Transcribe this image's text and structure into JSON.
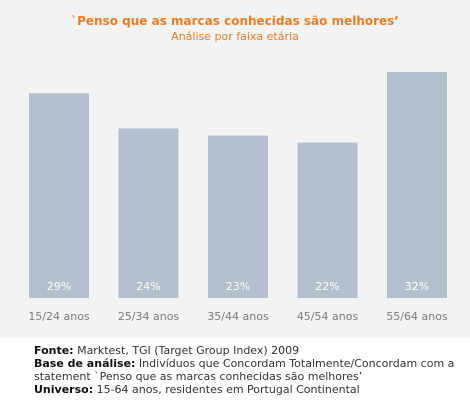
{
  "chart_data": {
    "type": "bar",
    "title": "`Penso que as marcas conhecidas são melhores’",
    "subtitle": "Análise por faixa etária",
    "categories": [
      "15/24 anos",
      "25/34 anos",
      "35/44 anos",
      "45/54 anos",
      "55/64 anos"
    ],
    "values": [
      29,
      24,
      23,
      22,
      32
    ],
    "value_labels": [
      "29%",
      "24%",
      "23%",
      "22%",
      "32%"
    ],
    "ylim": [
      0,
      40
    ],
    "grid": false,
    "colors": {
      "bar": "#b3bfcc",
      "title": "#f07c22",
      "panel": "#f3f3f3"
    }
  },
  "footer": {
    "fonte_label": "Fonte:",
    "fonte_text": " Marktest, TGI (Target Group Index) 2009",
    "base_label": "Base de análise:",
    "base_text": "  Indivíduos que Concordam Totalmente/Concordam com a",
    "base_text2": "statement `Penso que as marcas conhecidas são melhores’",
    "universo_label": "Universo:",
    "universo_text": " 15-64 anos, residentes em Portugal Continental"
  }
}
